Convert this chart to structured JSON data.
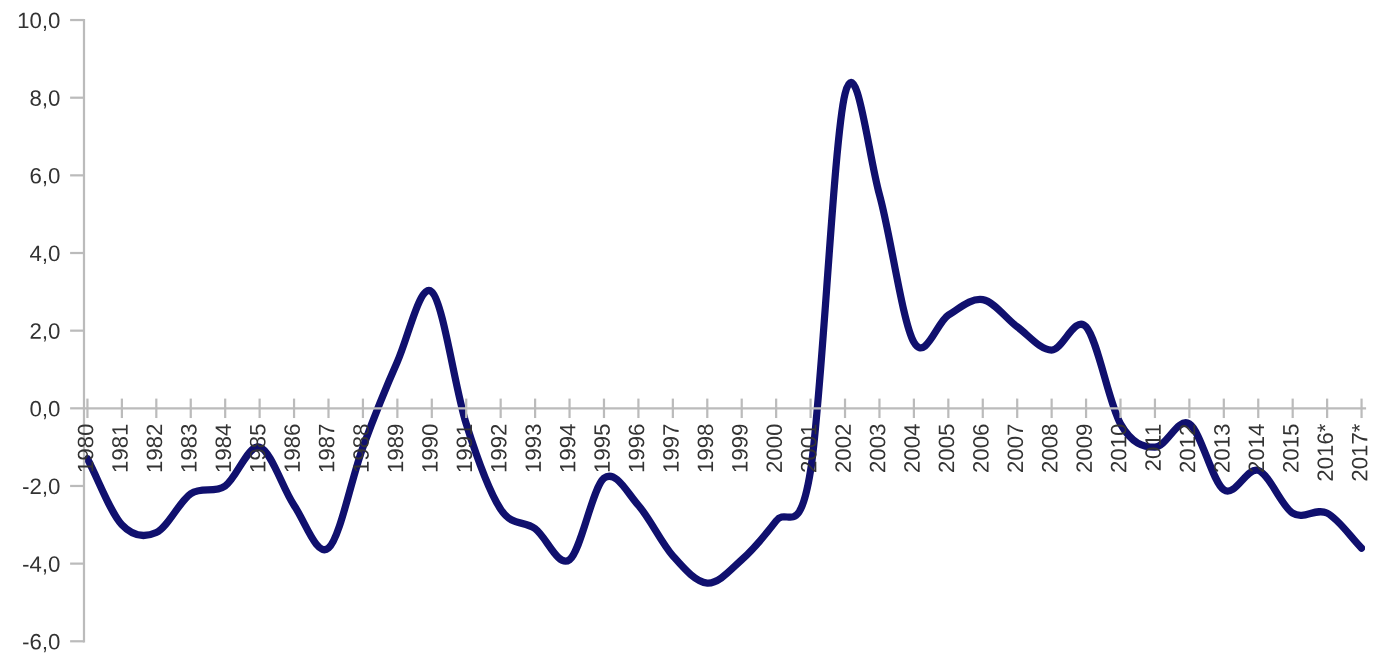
{
  "chart_data": {
    "type": "line",
    "categories": [
      "1980",
      "1981",
      "1982",
      "1983",
      "1984",
      "1985",
      "1986",
      "1987",
      "1988",
      "1989",
      "1990",
      "1991",
      "1992",
      "1993",
      "1994",
      "1995",
      "1996",
      "1997",
      "1998",
      "1999",
      "2000",
      "2001",
      "2002",
      "2003",
      "2004",
      "2005",
      "2006",
      "2007",
      "2008",
      "2009",
      "2010",
      "2011",
      "2012",
      "2013",
      "2014",
      "2015",
      "2016*",
      "2017*"
    ],
    "series": [
      {
        "color": "#10106e",
        "values": [
          -1.3,
          -3.0,
          -3.2,
          -2.2,
          -2.0,
          -1.0,
          -2.5,
          -3.6,
          -1.0,
          1.2,
          3.0,
          -0.4,
          -2.6,
          -3.1,
          -3.9,
          -1.8,
          -2.5,
          -3.8,
          -4.5,
          -3.9,
          -2.9,
          -1.6,
          8.1,
          5.5,
          1.7,
          2.4,
          2.8,
          2.1,
          1.5,
          2.1,
          -0.4,
          -1.0,
          -0.4,
          -2.1,
          -1.6,
          -2.7,
          -2.7,
          -3.6
        ]
      }
    ],
    "ylim": [
      -6,
      10
    ],
    "yticks": [
      {
        "value": -6,
        "label": "-6,0"
      },
      {
        "value": -4,
        "label": "-4,0"
      },
      {
        "value": -2,
        "label": "-2,0"
      },
      {
        "value": 0,
        "label": "0,0"
      },
      {
        "value": 2,
        "label": "2,0"
      },
      {
        "value": 4,
        "label": "4,0"
      },
      {
        "value": 6,
        "label": "6,0"
      },
      {
        "value": 8,
        "label": "8,0"
      },
      {
        "value": 10,
        "label": "10,0"
      }
    ],
    "grid": false,
    "legend": false,
    "marker": "none",
    "line_style": "solid"
  }
}
